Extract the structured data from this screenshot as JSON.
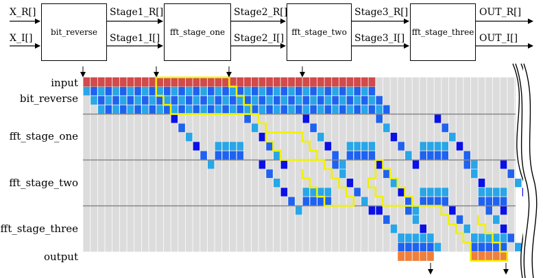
{
  "pipeline": {
    "inputs": [
      "X_R[]",
      "X_I[]"
    ],
    "blocks": [
      {
        "name": "bit_reverse",
        "out_top": "Stage1_R[]",
        "out_bottom": "Stage1_I[]"
      },
      {
        "name": "fft_stage_one",
        "out_top": "Stage2_R[]",
        "out_bottom": "Stage2_I[]"
      },
      {
        "name": "fft_stage_two",
        "out_top": "Stage3_R[]",
        "out_bottom": "Stage3_I[]"
      },
      {
        "name": "fft_stage_three",
        "out_top": "OUT_R[]",
        "out_bottom": "OUT_I[]"
      }
    ]
  },
  "schedule": {
    "rows": [
      "input",
      "bit_reverse",
      "fft_stage_one",
      "fft_stage_two",
      "fft_stage_three",
      "output"
    ],
    "colors": {
      "input_bar": "#d24a4a",
      "output_bar": "#ef7f3a",
      "dark": "#0a10e6",
      "mid": "#1f62f0",
      "light": "#28a6e8",
      "background": "#dcdcdc",
      "highlight": "#f2f200"
    }
  }
}
